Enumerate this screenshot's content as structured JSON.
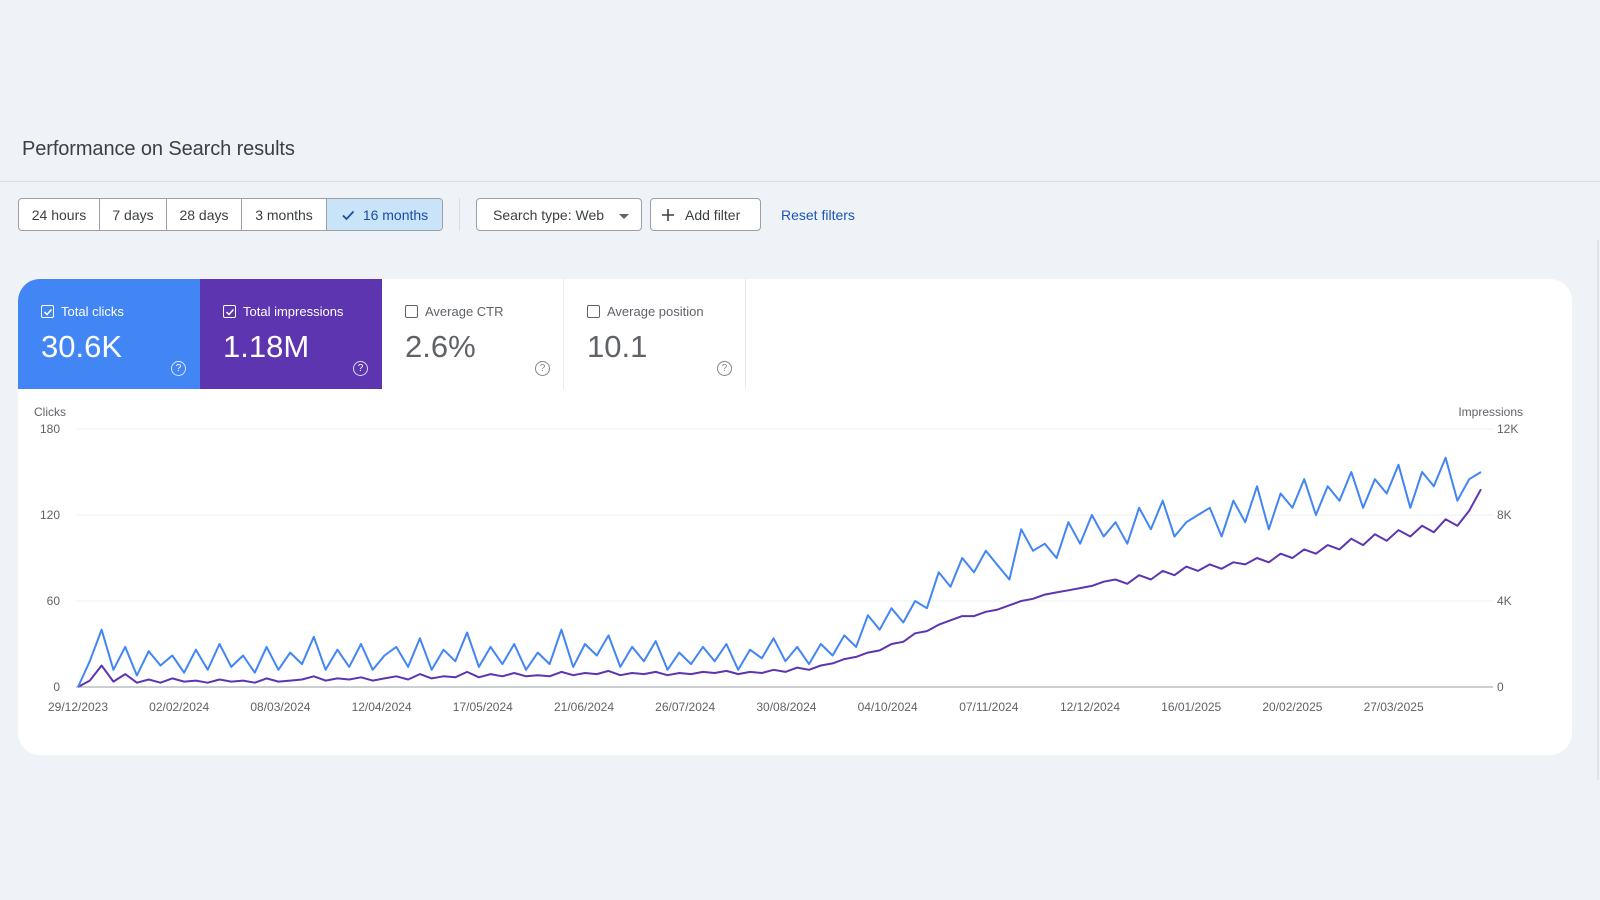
{
  "page": {
    "title": "Performance on Search results"
  },
  "toolbar": {
    "ranges": [
      {
        "label": "24 hours",
        "selected": false
      },
      {
        "label": "7 days",
        "selected": false
      },
      {
        "label": "28 days",
        "selected": false
      },
      {
        "label": "3 months",
        "selected": false
      },
      {
        "label": "16 months",
        "selected": true
      }
    ],
    "search_type": "Search type: Web",
    "add_filter": "Add filter",
    "reset": "Reset filters"
  },
  "metrics": {
    "clicks": {
      "label": "Total clicks",
      "value": "30.6K",
      "checked": true,
      "color": "#4285f4"
    },
    "impressions": {
      "label": "Total impressions",
      "value": "1.18M",
      "checked": true,
      "color": "#5e35b1"
    },
    "ctr": {
      "label": "Average CTR",
      "value": "2.6%",
      "checked": false
    },
    "position": {
      "label": "Average position",
      "value": "10.1",
      "checked": false
    }
  },
  "chart_data": {
    "type": "line",
    "left_axis_label": "Clicks",
    "right_axis_label": "Impressions",
    "left_ticks": [
      "0",
      "60",
      "120",
      "180"
    ],
    "left_ylim": [
      0,
      180
    ],
    "right_ticks": [
      "0",
      "4K",
      "8K",
      "12K"
    ],
    "right_ylim": [
      0,
      12000
    ],
    "x_ticks": [
      "29/12/2023",
      "02/02/2024",
      "08/03/2024",
      "12/04/2024",
      "17/05/2024",
      "21/06/2024",
      "26/07/2024",
      "30/08/2024",
      "04/10/2024",
      "07/11/2024",
      "12/12/2024",
      "16/01/2025",
      "20/02/2025",
      "27/03/2025"
    ],
    "grid": true,
    "series": [
      {
        "name": "Clicks",
        "axis": "left",
        "color": "#4285f4",
        "note": "one value per ~5 days, 29/12/2023 to end of April 2025",
        "values": [
          0,
          18,
          40,
          12,
          28,
          8,
          25,
          15,
          22,
          10,
          26,
          12,
          30,
          14,
          22,
          10,
          28,
          12,
          24,
          16,
          35,
          12,
          26,
          14,
          30,
          12,
          22,
          28,
          14,
          34,
          12,
          26,
          18,
          38,
          14,
          28,
          16,
          30,
          12,
          24,
          16,
          40,
          14,
          30,
          22,
          36,
          14,
          28,
          18,
          32,
          12,
          24,
          16,
          28,
          18,
          30,
          12,
          26,
          20,
          34,
          18,
          28,
          16,
          30,
          22,
          36,
          28,
          50,
          40,
          55,
          45,
          60,
          55,
          80,
          70,
          90,
          80,
          95,
          85,
          75,
          110,
          95,
          100,
          90,
          115,
          100,
          120,
          105,
          115,
          100,
          125,
          110,
          130,
          105,
          115,
          120,
          125,
          105,
          130,
          115,
          140,
          110,
          135,
          125,
          145,
          120,
          140,
          130,
          150,
          125,
          145,
          135,
          155,
          125,
          150,
          140,
          160,
          130,
          145,
          150
        ]
      },
      {
        "name": "Impressions",
        "axis": "right",
        "color": "#5e35b1",
        "note": "one value per ~5 days, 29/12/2023 to end of April 2025",
        "values": [
          0,
          300,
          1000,
          250,
          600,
          200,
          350,
          200,
          400,
          250,
          300,
          200,
          350,
          250,
          300,
          200,
          400,
          250,
          300,
          350,
          500,
          300,
          400,
          350,
          450,
          300,
          400,
          500,
          350,
          600,
          400,
          500,
          450,
          700,
          450,
          600,
          500,
          650,
          500,
          550,
          500,
          700,
          550,
          650,
          600,
          750,
          550,
          650,
          600,
          700,
          550,
          650,
          600,
          700,
          650,
          750,
          600,
          700,
          650,
          800,
          700,
          900,
          800,
          1000,
          1100,
          1300,
          1400,
          1600,
          1700,
          2000,
          2100,
          2500,
          2600,
          2900,
          3100,
          3300,
          3300,
          3500,
          3600,
          3800,
          4000,
          4100,
          4300,
          4400,
          4500,
          4600,
          4700,
          4900,
          5000,
          4800,
          5200,
          5000,
          5400,
          5200,
          5600,
          5400,
          5700,
          5500,
          5800,
          5700,
          6000,
          5800,
          6200,
          6000,
          6400,
          6200,
          6600,
          6400,
          6900,
          6600,
          7100,
          6800,
          7300,
          7000,
          7500,
          7200,
          7800,
          7500,
          8200,
          9200
        ]
      }
    ]
  }
}
